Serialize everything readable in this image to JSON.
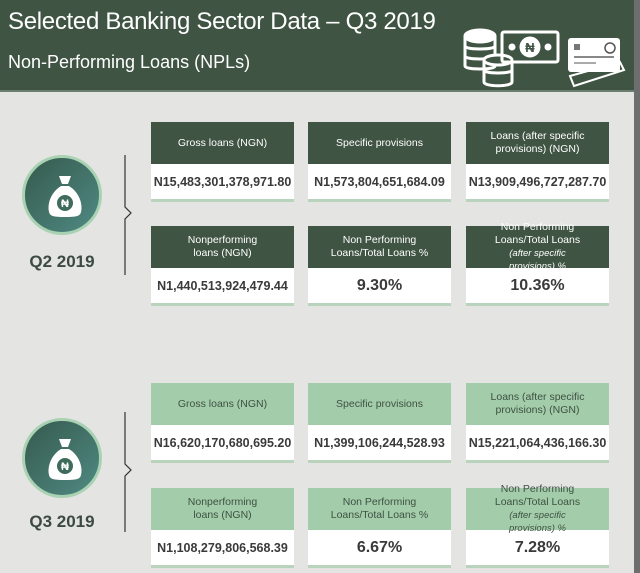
{
  "header": {
    "title": "Selected Banking Sector Data – Q3 2019",
    "subtitle": "Non-Performing Loans (NPLs)",
    "icons": [
      "coins-icon",
      "naira-banknote-icon",
      "credit-card-icon"
    ]
  },
  "colors": {
    "header_bg": "#3f5443",
    "q2_card_header": "#3f5443",
    "q3_card_header": "#a3ccaa",
    "background": "#e4e4e3"
  },
  "sections": [
    {
      "label": "Q2 2019",
      "icon": "money-bag-naira-icon",
      "cards": [
        {
          "header": "Gross loans (NGN)",
          "value": "N15,483,301,378,971.80"
        },
        {
          "header": "Specific provisions",
          "value": "N1,573,804,651,684.09"
        },
        {
          "header": "Loans (after specific provisions) (NGN)",
          "value": "N13,909,496,727,287.70"
        },
        {
          "header": "Nonperforming loans (NGN)",
          "value": "N1,440,513,924,479.44"
        },
        {
          "header": "Non Performing Loans/Total Loans %",
          "value": "9.30%"
        },
        {
          "header": "Non Performing Loans/Total Loans",
          "header_note": "(after specific provisions) %",
          "value": "10.36%"
        }
      ]
    },
    {
      "label": "Q3 2019",
      "icon": "money-bag-naira-icon",
      "cards": [
        {
          "header": "Gross loans (NGN)",
          "value": "N16,620,170,680,695.20"
        },
        {
          "header": "Specific provisions",
          "value": "N1,399,106,244,528.93"
        },
        {
          "header": "Loans (after specific provisions) (NGN)",
          "value": "N15,221,064,436,166.30"
        },
        {
          "header": "Nonperforming loans (NGN)",
          "value": "N1,108,279,806,568.39"
        },
        {
          "header": "Non Performing Loans/Total Loans %",
          "value": "6.67%"
        },
        {
          "header": "Non Performing Loans/Total Loans",
          "header_note": "(after specific provisions) %",
          "value": "7.28%"
        }
      ]
    }
  ]
}
